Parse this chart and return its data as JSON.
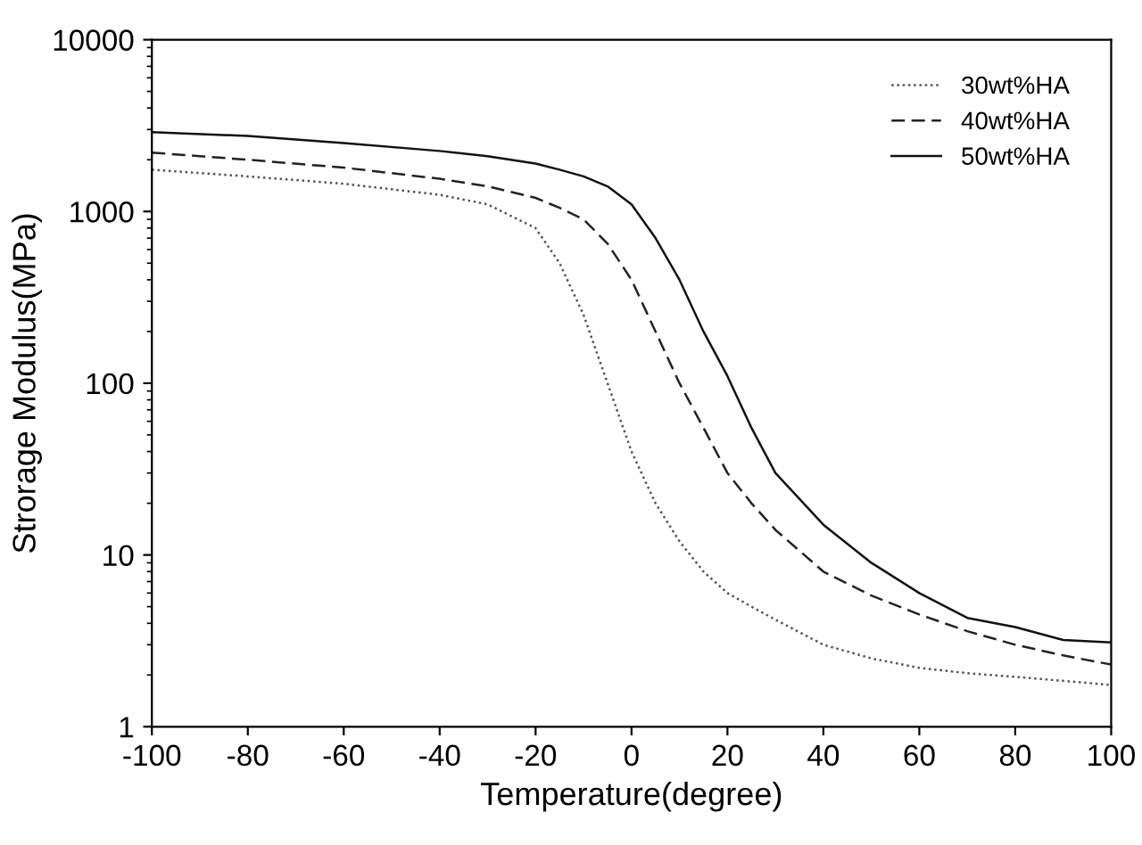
{
  "chart_data": {
    "type": "line",
    "xlabel": "Temperature(degree)",
    "ylabel": "Strorage Modulus(MPa)",
    "log": "y",
    "xlim": [
      -100,
      100
    ],
    "xticks": [
      -100,
      -80,
      -60,
      -40,
      -20,
      0,
      20,
      40,
      60,
      80,
      100
    ],
    "ylim": [
      1,
      10000
    ],
    "yticks": [
      1,
      10,
      100,
      1000,
      10000
    ],
    "grid": false,
    "legend": "top right",
    "marker": "none",
    "x": [
      -100,
      -80,
      -60,
      -40,
      -30,
      -20,
      -15,
      -10,
      -5,
      0,
      5,
      10,
      15,
      20,
      25,
      30,
      40,
      50,
      60,
      70,
      80,
      90,
      100
    ],
    "series": [
      {
        "name": "30wt%HA",
        "color": "#555555",
        "line_style": "dotted",
        "values": [
          1750,
          1600,
          1450,
          1250,
          1100,
          800,
          500,
          250,
          100,
          40,
          20,
          12,
          8,
          6,
          5,
          4.2,
          3.0,
          2.5,
          2.2,
          2.05,
          1.95,
          1.85,
          1.75
        ]
      },
      {
        "name": "40wt%HA",
        "color": "#222222",
        "line_style": "dashed",
        "values": [
          2200,
          2000,
          1800,
          1550,
          1400,
          1200,
          1050,
          900,
          650,
          400,
          200,
          100,
          55,
          30,
          20,
          14,
          8,
          5.8,
          4.5,
          3.6,
          3.0,
          2.6,
          2.3
        ]
      },
      {
        "name": "50wt%HA",
        "color": "#111111",
        "line_style": "solid",
        "values": [
          2900,
          2750,
          2500,
          2250,
          2100,
          1900,
          1750,
          1600,
          1400,
          1100,
          700,
          400,
          200,
          110,
          55,
          30,
          15,
          9,
          6,
          4.3,
          3.8,
          3.2,
          3.1
        ]
      }
    ]
  }
}
